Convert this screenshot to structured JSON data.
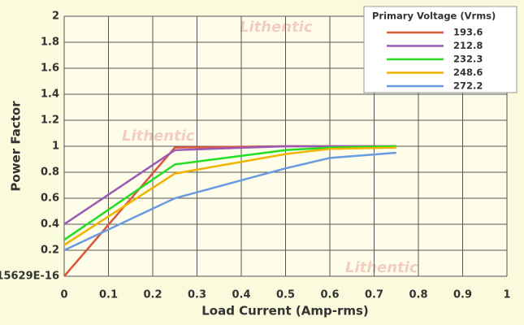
{
  "chart_data": {
    "type": "line",
    "xlabel": "Load Current (Amp-rms)",
    "ylabel": "Power Factor",
    "watermark": "Lithentic",
    "legend_title": "Primary Voltage (Vrms)",
    "legend_position": "upper right",
    "grid": true,
    "x": [
      0,
      0.25,
      0.5,
      0.6,
      0.75
    ],
    "series": [
      {
        "name": "193.6",
        "color": "#d9573b",
        "values": [
          0,
          0.99,
          1.0,
          1.0,
          1.0
        ]
      },
      {
        "name": "212.8",
        "color": "#9b59b6",
        "values": [
          0.4,
          0.97,
          1.0,
          1.0,
          1.0
        ]
      },
      {
        "name": "232.3",
        "color": "#22dd22",
        "values": [
          0.28,
          0.86,
          0.97,
          0.99,
          1.0
        ]
      },
      {
        "name": "248.6",
        "color": "#f0b400",
        "values": [
          0.24,
          0.79,
          0.94,
          0.98,
          0.99
        ]
      },
      {
        "name": "272.2",
        "color": "#6a9ae0",
        "values": [
          0.2,
          0.6,
          0.83,
          0.91,
          0.95
        ]
      }
    ],
    "xlim": [
      0,
      1
    ],
    "xticks": [
      0,
      0.1,
      0.2,
      0.3,
      0.4,
      0.5,
      0.6,
      0.7,
      0.8,
      0.9,
      1
    ],
    "ylim": [
      0,
      2
    ],
    "yticks": [
      {
        "value": 0,
        "label": "15629E-16"
      },
      0.2,
      0.4,
      0.6,
      0.8,
      1,
      1.2,
      1.4,
      1.6,
      1.8,
      2
    ]
  }
}
